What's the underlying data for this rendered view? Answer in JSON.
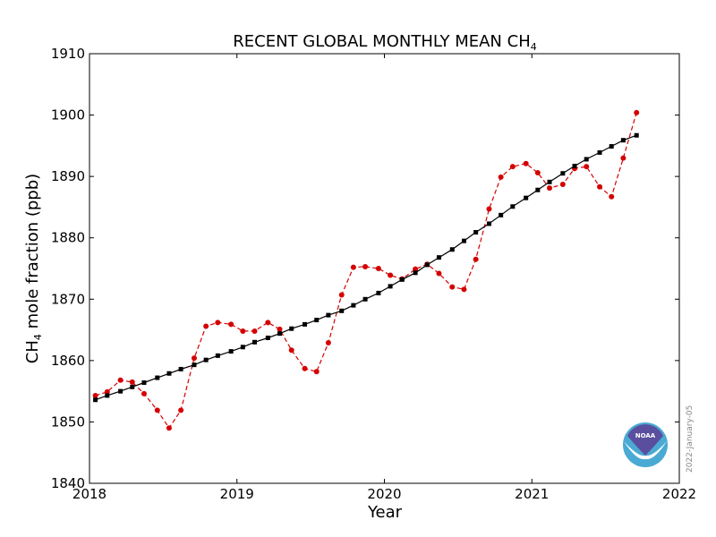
{
  "chart_data": {
    "type": "line",
    "title_text": "RECENT GLOBAL MONTHLY MEAN CH",
    "title_subscript": "4",
    "ylabel_prefix": "CH",
    "ylabel_subscript": "4",
    "ylabel_suffix": " mole fraction (ppb)",
    "xlabel": "Year",
    "xlim": [
      2018,
      2022
    ],
    "ylim": [
      1840,
      1910
    ],
    "xticks": [
      2018,
      2019,
      2020,
      2021,
      2022
    ],
    "xtick_labels": [
      "2018",
      "2019",
      "2020",
      "2021",
      "2022"
    ],
    "yticks": [
      1840,
      1850,
      1860,
      1870,
      1880,
      1890,
      1900,
      1910
    ],
    "ytick_labels": [
      "1840",
      "1850",
      "1860",
      "1870",
      "1880",
      "1890",
      "1900",
      "1910"
    ],
    "grid": false,
    "series": [
      {
        "style": "dashed-circle",
        "color": "#d40000",
        "x": [
          2018.04,
          2018.12,
          2018.21,
          2018.29,
          2018.37,
          2018.46,
          2018.54,
          2018.62,
          2018.71,
          2018.79,
          2018.87,
          2018.96,
          2019.04,
          2019.12,
          2019.21,
          2019.29,
          2019.37,
          2019.46,
          2019.54,
          2019.62,
          2019.71,
          2019.79,
          2019.87,
          2019.96,
          2020.04,
          2020.12,
          2020.21,
          2020.29,
          2020.37,
          2020.46,
          2020.54,
          2020.62,
          2020.71,
          2020.79,
          2020.87,
          2020.96,
          2021.04,
          2021.12,
          2021.21,
          2021.29,
          2021.37,
          2021.46,
          2021.54,
          2021.62,
          2021.71
        ],
        "values": [
          1854.3,
          1854.9,
          1856.8,
          1856.5,
          1854.6,
          1851.9,
          1849.0,
          1851.9,
          1860.4,
          1865.6,
          1866.2,
          1865.9,
          1864.8,
          1864.8,
          1866.2,
          1865.1,
          1861.7,
          1858.7,
          1858.2,
          1862.9,
          1870.7,
          1875.2,
          1875.3,
          1875.0,
          1873.9,
          1873.3,
          1874.9,
          1875.7,
          1874.2,
          1872.0,
          1871.6,
          1876.5,
          1884.7,
          1889.9,
          1891.6,
          1892.1,
          1890.6,
          1888.1,
          1888.7,
          1891.3,
          1891.6,
          1888.3,
          1886.7,
          1893.0,
          1900.4
        ]
      },
      {
        "style": "solid-square",
        "color": "#000000",
        "x": [
          2018.04,
          2018.12,
          2018.21,
          2018.29,
          2018.37,
          2018.46,
          2018.54,
          2018.62,
          2018.71,
          2018.79,
          2018.87,
          2018.96,
          2019.04,
          2019.12,
          2019.21,
          2019.29,
          2019.37,
          2019.46,
          2019.54,
          2019.62,
          2019.71,
          2019.79,
          2019.87,
          2019.96,
          2020.04,
          2020.12,
          2020.21,
          2020.29,
          2020.37,
          2020.46,
          2020.54,
          2020.62,
          2020.71,
          2020.79,
          2020.87,
          2020.96,
          2021.04,
          2021.12,
          2021.21,
          2021.29,
          2021.37,
          2021.46,
          2021.54,
          2021.62,
          2021.71
        ],
        "values": [
          1853.6,
          1854.3,
          1855.0,
          1855.7,
          1856.4,
          1857.2,
          1857.9,
          1858.6,
          1859.3,
          1860.1,
          1860.8,
          1861.5,
          1862.2,
          1863.0,
          1863.7,
          1864.4,
          1865.2,
          1865.9,
          1866.6,
          1867.4,
          1868.1,
          1869.0,
          1870.0,
          1871.0,
          1872.1,
          1873.2,
          1874.3,
          1875.6,
          1876.8,
          1878.1,
          1879.5,
          1880.9,
          1882.3,
          1883.7,
          1885.1,
          1886.5,
          1887.8,
          1889.1,
          1890.5,
          1891.7,
          1892.8,
          1893.9,
          1894.9,
          1895.9,
          1896.7
        ]
      }
    ],
    "logo_text": "NOAA",
    "date_stamp": "2022-January-05"
  }
}
